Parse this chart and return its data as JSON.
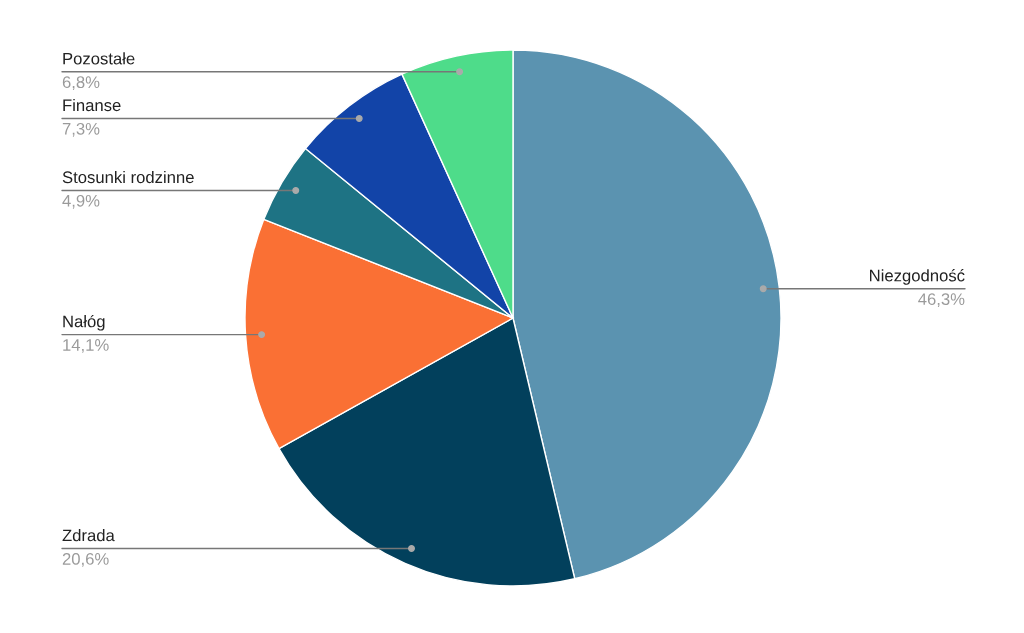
{
  "chart_data": {
    "type": "pie",
    "categories": [
      "Niezgodność",
      "Zdrada",
      "Nałóg",
      "Stosunki rodzinne",
      "Finanse",
      "Pozostałe"
    ],
    "values": [
      46.3,
      20.6,
      14.1,
      4.9,
      7.3,
      6.8
    ],
    "value_labels": [
      "46,3%",
      "20,6%",
      "14,1%",
      "4,9%",
      "7,3%",
      "6,8%"
    ],
    "colors": [
      "#5b93b0",
      "#02405c",
      "#fa7034",
      "#1e7384",
      "#1244a8",
      "#4edc8a"
    ]
  }
}
